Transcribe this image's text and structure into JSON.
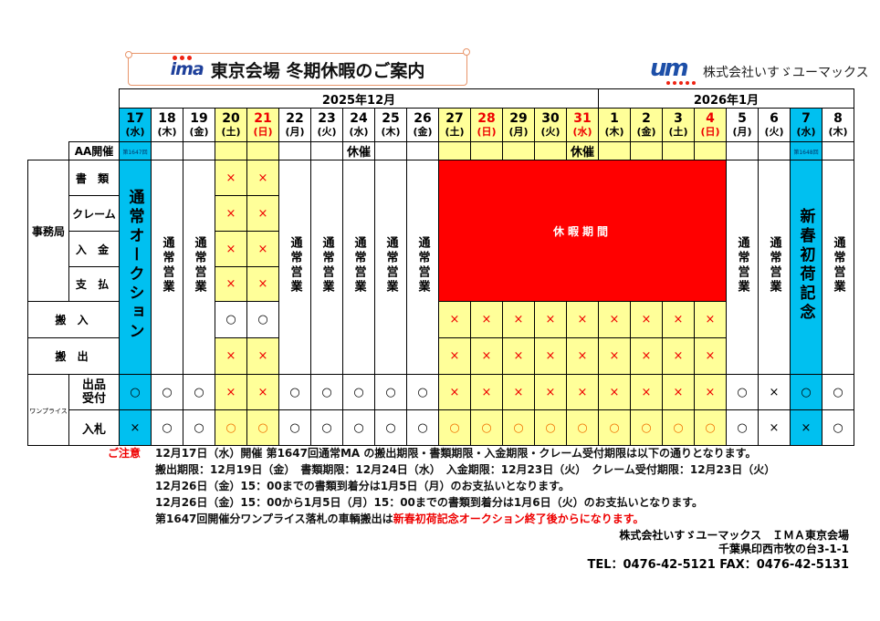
{
  "header": {
    "logo_text": "ima",
    "title": "東京会場 冬期休暇のご案内",
    "company_logo_text": "um",
    "company_name": "株式会社いすゞユーマックス"
  },
  "colors": {
    "auction_blue": "#00c0f0",
    "weekend_yellow": "#ffff99",
    "holiday_red": "#ff0000"
  },
  "table": {
    "months": [
      {
        "label": "2025年12月",
        "span": 15
      },
      {
        "label": "2026年1月",
        "span": 8
      }
    ],
    "row_labels": {
      "aa": "AA開催",
      "office": "事務局",
      "office_rows": [
        "書 類",
        "クレーム",
        "入 金",
        "支 払"
      ],
      "in": "搬 入",
      "out": "搬 出",
      "oneprice": "ワンプライス",
      "oneprice_rows": [
        "出品\n受付",
        "入札"
      ]
    },
    "holiday_label": "休暇期間",
    "days": [
      {
        "d": "17",
        "w": "(水)",
        "bg": "blue",
        "aa": "第1647回",
        "main": "通常オークション",
        "op": [
          "○",
          "×"
        ]
      },
      {
        "d": "18",
        "w": "(木)",
        "bg": "white",
        "aa": "",
        "main": "通常営業",
        "op": [
          "○",
          "○"
        ]
      },
      {
        "d": "19",
        "w": "(金)",
        "bg": "white",
        "aa": "",
        "main": "通常営業",
        "op": [
          "○",
          "○"
        ]
      },
      {
        "d": "20",
        "w": "(土)",
        "bg": "yellow",
        "aa": "",
        "marks": [
          "×",
          "×",
          "×",
          "×",
          "○",
          "×"
        ],
        "op": [
          "×",
          "○"
        ]
      },
      {
        "d": "21",
        "w": "(日)",
        "bg": "yellow",
        "red": true,
        "aa": "",
        "marks": [
          "×",
          "×",
          "×",
          "×",
          "○",
          "×"
        ],
        "op": [
          "×",
          "○"
        ]
      },
      {
        "d": "22",
        "w": "(月)",
        "bg": "white",
        "aa": "",
        "main": "通常営業",
        "op": [
          "○",
          "○"
        ]
      },
      {
        "d": "23",
        "w": "(火)",
        "bg": "white",
        "aa": "",
        "main": "通常営業",
        "op": [
          "○",
          "○"
        ]
      },
      {
        "d": "24",
        "w": "(水)",
        "bg": "white",
        "aa": "休催",
        "main": "通常営業",
        "op": [
          "○",
          "○"
        ]
      },
      {
        "d": "25",
        "w": "(木)",
        "bg": "white",
        "aa": "",
        "main": "通常営業",
        "op": [
          "○",
          "○"
        ]
      },
      {
        "d": "26",
        "w": "(金)",
        "bg": "white",
        "aa": "",
        "main": "通常営業",
        "op": [
          "○",
          "○"
        ]
      },
      {
        "d": "27",
        "w": "(土)",
        "bg": "yellow",
        "aa": "",
        "holiday": true,
        "marks": [
          "×",
          "×"
        ],
        "op": [
          "×",
          "○"
        ]
      },
      {
        "d": "28",
        "w": "(日)",
        "bg": "yellow",
        "red": true,
        "aa": "",
        "holiday": true,
        "marks": [
          "×",
          "×"
        ],
        "op": [
          "×",
          "○"
        ]
      },
      {
        "d": "29",
        "w": "(月)",
        "bg": "yellow",
        "aa": "",
        "holiday": true,
        "marks": [
          "×",
          "×"
        ],
        "op": [
          "×",
          "○"
        ]
      },
      {
        "d": "30",
        "w": "(火)",
        "bg": "yellow",
        "aa": "",
        "holiday": true,
        "marks": [
          "×",
          "×"
        ],
        "op": [
          "×",
          "○"
        ]
      },
      {
        "d": "31",
        "w": "(水)",
        "bg": "yellow",
        "red": true,
        "aa": "休催",
        "holiday": true,
        "marks": [
          "×",
          "×"
        ],
        "op": [
          "×",
          "○"
        ]
      },
      {
        "d": "1",
        "w": "(木)",
        "bg": "yellow",
        "aa": "",
        "holiday": true,
        "marks": [
          "×",
          "×"
        ],
        "op": [
          "×",
          "○"
        ]
      },
      {
        "d": "2",
        "w": "(金)",
        "bg": "yellow",
        "aa": "",
        "holiday": true,
        "marks": [
          "×",
          "×"
        ],
        "op": [
          "×",
          "○"
        ]
      },
      {
        "d": "3",
        "w": "(土)",
        "bg": "yellow",
        "aa": "",
        "holiday": true,
        "marks": [
          "×",
          "×"
        ],
        "op": [
          "×",
          "○"
        ]
      },
      {
        "d": "4",
        "w": "(日)",
        "bg": "yellow",
        "red": true,
        "aa": "",
        "holiday": true,
        "marks": [
          "×",
          "×"
        ],
        "op": [
          "×",
          "○"
        ]
      },
      {
        "d": "5",
        "w": "(月)",
        "bg": "white",
        "aa": "",
        "main": "通常営業",
        "op": [
          "○",
          "○"
        ]
      },
      {
        "d": "6",
        "w": "(火)",
        "bg": "white",
        "aa": "",
        "main": "通常営業",
        "op": [
          "×",
          "×"
        ]
      },
      {
        "d": "7",
        "w": "(水)",
        "bg": "blue",
        "aa": "第1648回",
        "main": "新春初荷記念",
        "op": [
          "○",
          "×"
        ]
      },
      {
        "d": "8",
        "w": "(木)",
        "bg": "white",
        "aa": "",
        "main": "通常営業",
        "op": [
          "○",
          "○"
        ]
      }
    ]
  },
  "notes": {
    "heading": "ご注意",
    "lines": [
      "12月17日（水）開催 第1647回通常MA の搬出期限・書類期限・入金期限・クレーム受付期限は以下の通りとなります。",
      "搬出期限：12月19日（金）　書類期限：12月24日（水）　入金期限：12月23日（火）　クレーム受付期限：12月23日（火）",
      "12月26日（金）15：00までの書類到着分は1月5日（月）のお支払いとなります。",
      "12月26日（金）15：00から1月5日（月）15：00までの書類到着分は1月6日（火）のお支払いとなります。"
    ],
    "last_line_prefix": "第1647回開催分ワンプライス落札の車輌搬出は",
    "last_line_highlight": "新春初荷記念オークション終了後からになります。"
  },
  "footer": {
    "company": "株式会社いすゞユーマックス　ＩＭＡ東京会場",
    "address": "千葉県印西市牧の台3-1-1",
    "contact": "TEL：0476-42-5121  FAX：0476-42-5131"
  }
}
